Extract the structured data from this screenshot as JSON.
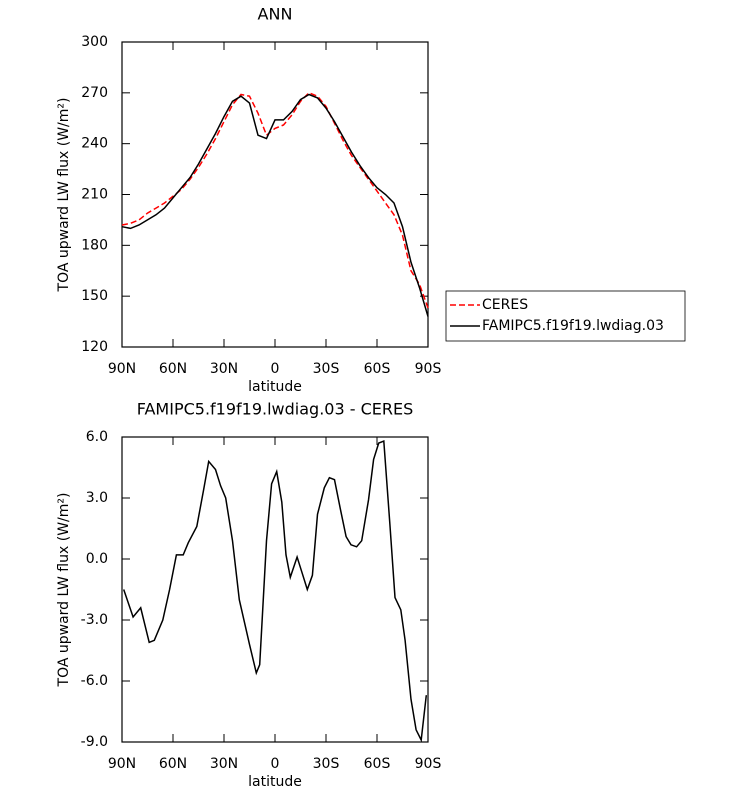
{
  "chart_data": [
    {
      "type": "line",
      "title": "ANN",
      "xlabel": "latitude",
      "ylabel": "TOA upward LW flux (W/m²)",
      "x": [
        90,
        85,
        80,
        75,
        70,
        65,
        60,
        55,
        50,
        45,
        40,
        35,
        30,
        25,
        20,
        15,
        10,
        5,
        0,
        -5,
        -10,
        -15,
        -20,
        -25,
        -30,
        -35,
        -40,
        -45,
        -50,
        -55,
        -60,
        -65,
        -70,
        -75,
        -80,
        -85,
        -90
      ],
      "series": [
        {
          "name": "CERES",
          "color": "#ff0000",
          "linestyle": "dashed",
          "values": [
            192,
            193,
            195,
            199,
            202,
            205,
            209,
            213,
            219,
            226,
            234,
            243,
            253,
            263,
            269,
            268,
            258,
            245,
            249,
            251,
            257,
            265,
            270,
            268,
            262,
            252,
            242,
            233,
            226,
            219,
            212,
            205,
            198,
            186,
            165,
            157,
            143
          ]
        },
        {
          "name": "FAMIPC5.f19f19.lwdiag.03",
          "color": "#000000",
          "linestyle": "solid",
          "values": [
            191,
            190,
            192,
            195,
            198,
            202,
            208,
            214,
            220,
            228,
            237,
            246,
            256,
            265,
            268,
            264,
            245,
            243,
            254,
            254,
            259,
            266,
            269,
            267,
            261,
            253,
            244,
            235,
            227,
            220,
            214,
            210,
            205,
            191,
            170,
            155,
            138
          ]
        }
      ],
      "xlim": [
        90,
        -90
      ],
      "xticks": [
        {
          "value": 90,
          "label": "90N"
        },
        {
          "value": 60,
          "label": "60N"
        },
        {
          "value": 30,
          "label": "30N"
        },
        0,
        {
          "value": -30,
          "label": "30S"
        },
        {
          "value": -60,
          "label": "60S"
        },
        {
          "value": -90,
          "label": "90S"
        }
      ],
      "ylim": [
        120,
        300
      ],
      "yticks": [
        120,
        150,
        180,
        210,
        240,
        270,
        300
      ]
    },
    {
      "type": "line",
      "title": "FAMIPC5.f19f19.lwdiag.03 - CERES",
      "xlabel": "latitude",
      "ylabel": "TOA upward LW flux (W/m²)",
      "x": [
        89,
        83.5,
        79,
        74,
        71,
        66,
        62,
        58,
        54,
        51,
        46,
        42,
        39,
        35,
        32,
        29,
        25,
        21,
        15,
        11,
        9,
        5,
        2,
        -1,
        -4,
        -6.5,
        -9,
        -13,
        -16,
        -19,
        -22,
        -25,
        -29,
        -32,
        -35,
        -38.6,
        -41.8,
        -44.7,
        -48,
        -51,
        -55,
        -58,
        -61,
        -64,
        -67.6,
        -70.6,
        -74,
        -76.5,
        -80,
        -83,
        -86,
        -89
      ],
      "series": [
        {
          "color": "#000000",
          "linestyle": "solid",
          "values": [
            -1.5,
            -2.85,
            -2.4,
            -4.1,
            -4.0,
            -3.0,
            -1.5,
            0.2,
            0.2,
            0.8,
            1.6,
            3.4,
            4.8,
            4.4,
            3.6,
            3.0,
            0.9,
            -2.0,
            -4.2,
            -5.6,
            -5.2,
            0.9,
            3.7,
            4.3,
            2.8,
            0.2,
            -0.9,
            0.1,
            -0.7,
            -1.5,
            -0.8,
            2.2,
            3.5,
            4.0,
            3.9,
            2.4,
            1.1,
            0.7,
            0.6,
            0.9,
            2.9,
            4.9,
            5.7,
            5.8,
            1.7,
            -1.9,
            -2.5,
            -4.0,
            -6.9,
            -8.4,
            -8.9,
            -6.7
          ]
        }
      ],
      "xlim": [
        90,
        -90
      ],
      "xticks": [
        {
          "value": 90,
          "label": "90N"
        },
        {
          "value": 60,
          "label": "60N"
        },
        {
          "value": 30,
          "label": "30N"
        },
        0,
        {
          "value": -30,
          "label": "30S"
        },
        {
          "value": -60,
          "label": "60S"
        },
        {
          "value": -90,
          "label": "90S"
        }
      ],
      "ylim": [
        -9,
        6
      ],
      "yticks": [
        {
          "value": -9,
          "label": "-9.0"
        },
        {
          "value": -6,
          "label": "-6.0"
        },
        {
          "value": -3,
          "label": "-3.0"
        },
        {
          "value": 0,
          "label": "0.0"
        },
        {
          "value": 3,
          "label": "3.0"
        },
        {
          "value": 6,
          "label": "6.0"
        }
      ]
    }
  ]
}
